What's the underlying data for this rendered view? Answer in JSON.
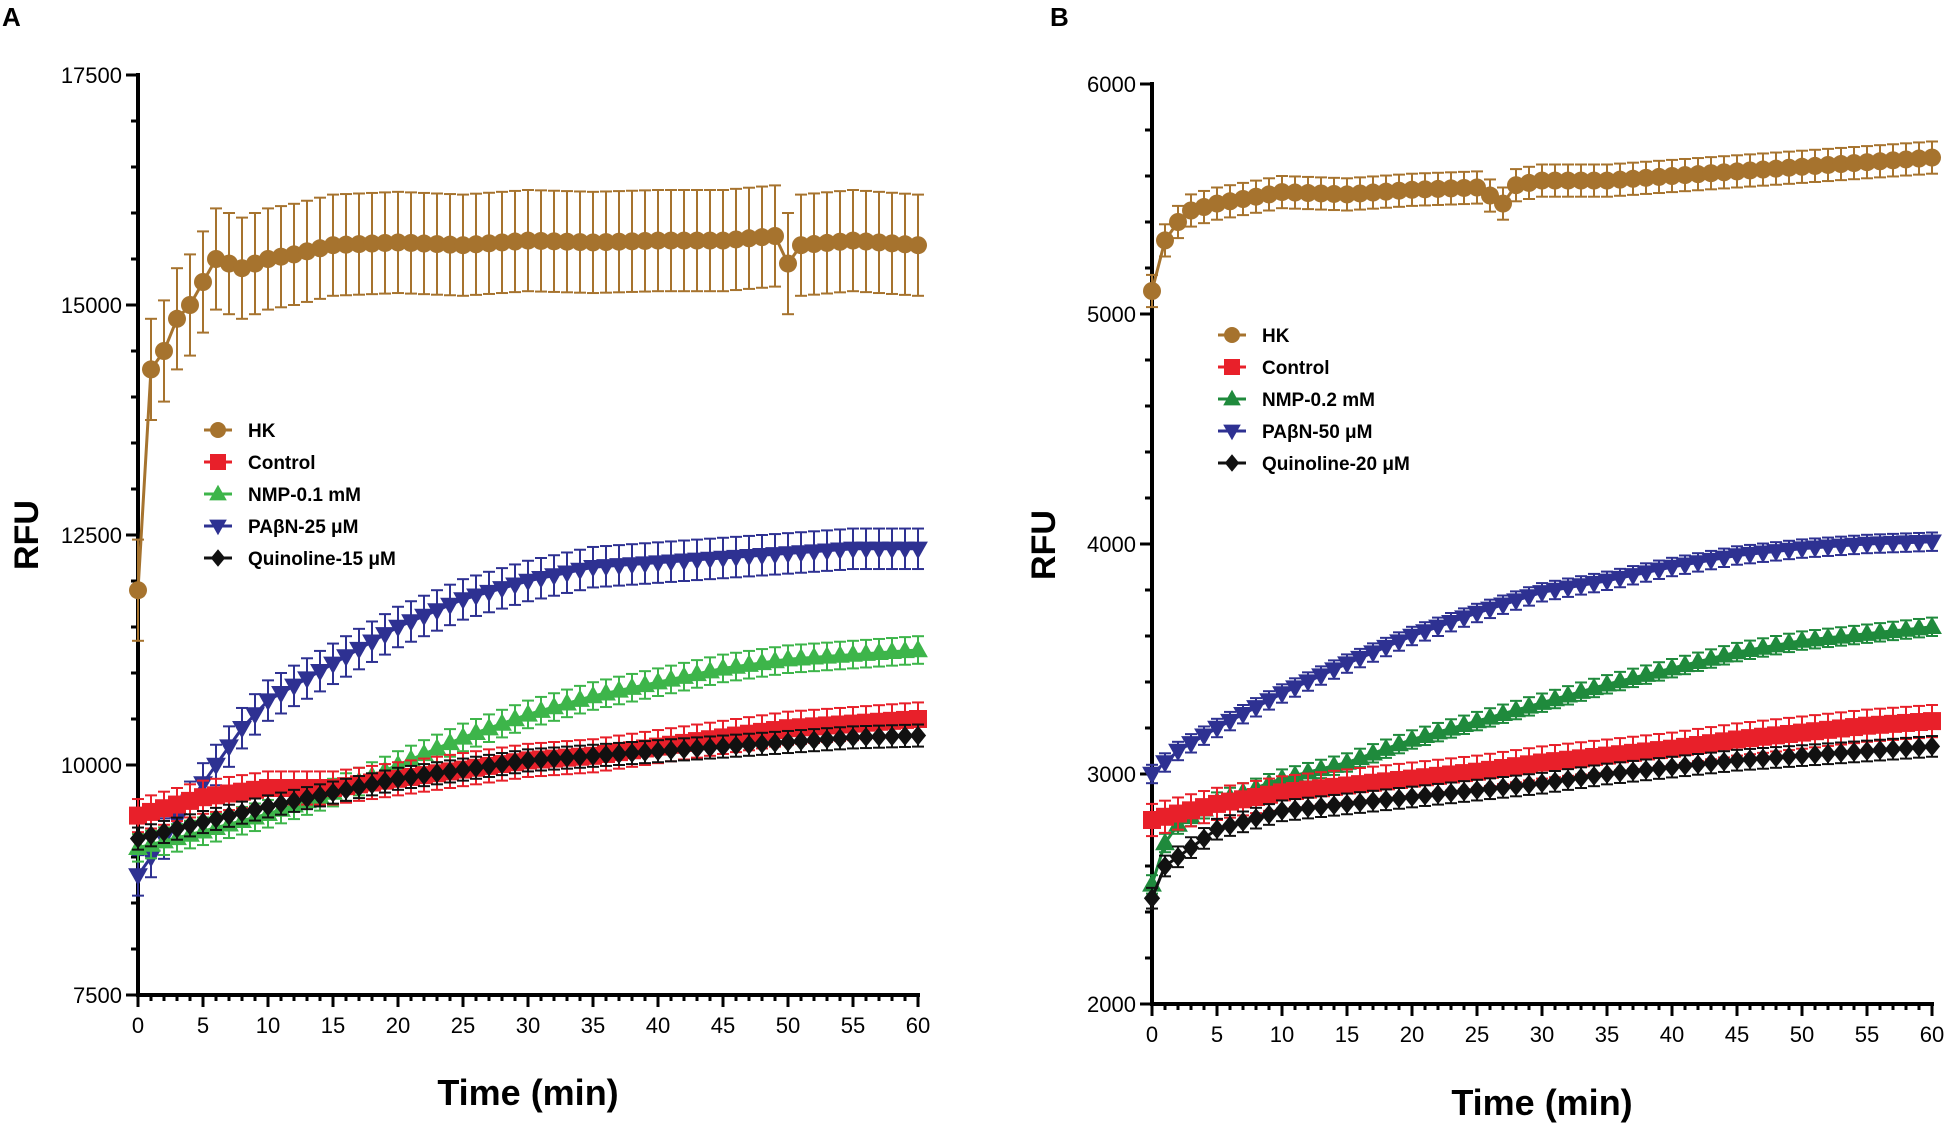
{
  "chart_data": [
    {
      "panel": "A",
      "type": "line",
      "xlabel": "Time (min)",
      "ylabel": "RFU",
      "xlim": [
        0,
        60
      ],
      "ylim": [
        7500,
        17500
      ],
      "xticks": [
        0,
        5,
        10,
        15,
        20,
        25,
        30,
        35,
        40,
        45,
        50,
        55,
        60
      ],
      "yticks": [
        7500,
        10000,
        12500,
        15000,
        17500
      ],
      "error_bars": true,
      "series": [
        {
          "name": "HK",
          "color": "#a6732e",
          "marker": "circle",
          "points": [
            [
              0,
              11900
            ],
            [
              1,
              14300
            ],
            [
              2,
              14500
            ],
            [
              3,
              14850
            ],
            [
              4,
              15000
            ],
            [
              5,
              15250
            ],
            [
              6,
              15500
            ],
            [
              7,
              15450
            ],
            [
              8,
              15400
            ],
            [
              10,
              15500
            ],
            [
              12,
              15550
            ],
            [
              15,
              15650
            ],
            [
              20,
              15680
            ],
            [
              25,
              15650
            ],
            [
              30,
              15700
            ],
            [
              35,
              15680
            ],
            [
              40,
              15700
            ],
            [
              45,
              15700
            ],
            [
              49,
              15750
            ],
            [
              50,
              15450
            ],
            [
              51,
              15650
            ],
            [
              55,
              15700
            ],
            [
              60,
              15650
            ]
          ],
          "err": 550
        },
        {
          "name": "Control",
          "color": "#e8202a",
          "marker": "square",
          "points": [
            [
              0,
              9450
            ],
            [
              5,
              9650
            ],
            [
              10,
              9750
            ],
            [
              15,
              9750
            ],
            [
              20,
              9850
            ],
            [
              25,
              9950
            ],
            [
              30,
              10050
            ],
            [
              35,
              10100
            ],
            [
              40,
              10200
            ],
            [
              45,
              10300
            ],
            [
              50,
              10400
            ],
            [
              55,
              10450
            ],
            [
              60,
              10500
            ]
          ],
          "err": 180
        },
        {
          "name": "NMP-0.1 mM",
          "color": "#3db54a",
          "marker": "triangle-up",
          "points": [
            [
              0,
              9100
            ],
            [
              5,
              9280
            ],
            [
              10,
              9470
            ],
            [
              15,
              9700
            ],
            [
              20,
              10000
            ],
            [
              25,
              10300
            ],
            [
              30,
              10550
            ],
            [
              35,
              10750
            ],
            [
              40,
              10900
            ],
            [
              45,
              11050
            ],
            [
              50,
              11150
            ],
            [
              55,
              11200
            ],
            [
              60,
              11250
            ]
          ],
          "err": 150
        },
        {
          "name": "PAβN-25 μM",
          "color": "#2e3192",
          "marker": "triangle-down",
          "points": [
            [
              0,
              8800
            ],
            [
              2,
              9200
            ],
            [
              5,
              9800
            ],
            [
              8,
              10400
            ],
            [
              10,
              10700
            ],
            [
              15,
              11100
            ],
            [
              20,
              11500
            ],
            [
              25,
              11800
            ],
            [
              30,
              12000
            ],
            [
              35,
              12150
            ],
            [
              40,
              12200
            ],
            [
              45,
              12250
            ],
            [
              50,
              12300
            ],
            [
              55,
              12350
            ],
            [
              60,
              12350
            ]
          ],
          "err": 220
        },
        {
          "name": "Quinoline-15 μM",
          "color": "#111111",
          "marker": "diamond",
          "points": [
            [
              0,
              9200
            ],
            [
              5,
              9380
            ],
            [
              10,
              9550
            ],
            [
              15,
              9700
            ],
            [
              20,
              9850
            ],
            [
              25,
              9950
            ],
            [
              30,
              10050
            ],
            [
              35,
              10100
            ],
            [
              40,
              10150
            ],
            [
              45,
              10200
            ],
            [
              50,
              10250
            ],
            [
              55,
              10300
            ],
            [
              60,
              10320
            ]
          ],
          "err": 120
        }
      ]
    },
    {
      "panel": "B",
      "type": "line",
      "xlabel": "Time (min)",
      "ylabel": "RFU",
      "xlim": [
        0,
        60
      ],
      "ylim": [
        2000,
        6000
      ],
      "xticks": [
        0,
        5,
        10,
        15,
        20,
        25,
        30,
        35,
        40,
        45,
        50,
        55,
        60
      ],
      "yticks": [
        2000,
        3000,
        4000,
        5000,
        6000
      ],
      "error_bars": true,
      "series": [
        {
          "name": "HK",
          "color": "#a6732e",
          "marker": "circle",
          "points": [
            [
              0,
              5100
            ],
            [
              1,
              5320
            ],
            [
              2,
              5400
            ],
            [
              3,
              5450
            ],
            [
              5,
              5480
            ],
            [
              8,
              5510
            ],
            [
              10,
              5530
            ],
            [
              15,
              5520
            ],
            [
              20,
              5540
            ],
            [
              25,
              5550
            ],
            [
              27,
              5480
            ],
            [
              28,
              5560
            ],
            [
              30,
              5580
            ],
            [
              35,
              5580
            ],
            [
              40,
              5600
            ],
            [
              45,
              5620
            ],
            [
              50,
              5640
            ],
            [
              55,
              5660
            ],
            [
              60,
              5680
            ]
          ],
          "err": 70
        },
        {
          "name": "Control",
          "color": "#e8202a",
          "marker": "square",
          "points": [
            [
              0,
              2800
            ],
            [
              5,
              2870
            ],
            [
              10,
              2920
            ],
            [
              15,
              2950
            ],
            [
              20,
              2980
            ],
            [
              25,
              3010
            ],
            [
              30,
              3050
            ],
            [
              35,
              3080
            ],
            [
              40,
              3110
            ],
            [
              45,
              3150
            ],
            [
              50,
              3180
            ],
            [
              55,
              3210
            ],
            [
              60,
              3230
            ]
          ],
          "err": 70
        },
        {
          "name": "NMP-0.2 mM",
          "color": "#1f8a3c",
          "marker": "triangle-up",
          "points": [
            [
              0,
              2520
            ],
            [
              1,
              2700
            ],
            [
              2,
              2780
            ],
            [
              5,
              2880
            ],
            [
              10,
              2980
            ],
            [
              15,
              3050
            ],
            [
              20,
              3150
            ],
            [
              25,
              3230
            ],
            [
              30,
              3310
            ],
            [
              35,
              3390
            ],
            [
              40,
              3460
            ],
            [
              45,
              3530
            ],
            [
              50,
              3580
            ],
            [
              55,
              3610
            ],
            [
              60,
              3640
            ]
          ],
          "err": 40
        },
        {
          "name": "PAβN-50 μM",
          "color": "#2e3192",
          "marker": "triangle-down",
          "points": [
            [
              0,
              3000
            ],
            [
              2,
              3100
            ],
            [
              5,
              3200
            ],
            [
              10,
              3350
            ],
            [
              15,
              3480
            ],
            [
              20,
              3600
            ],
            [
              25,
              3700
            ],
            [
              30,
              3790
            ],
            [
              35,
              3840
            ],
            [
              40,
              3900
            ],
            [
              45,
              3950
            ],
            [
              50,
              3980
            ],
            [
              55,
              4000
            ],
            [
              60,
              4010
            ]
          ],
          "err": 40
        },
        {
          "name": "Quinoline-20 μM",
          "color": "#111111",
          "marker": "diamond",
          "points": [
            [
              0,
              2460
            ],
            [
              1,
              2600
            ],
            [
              3,
              2680
            ],
            [
              5,
              2760
            ],
            [
              10,
              2840
            ],
            [
              15,
              2870
            ],
            [
              20,
              2900
            ],
            [
              25,
              2930
            ],
            [
              30,
              2960
            ],
            [
              35,
              3000
            ],
            [
              40,
              3030
            ],
            [
              45,
              3060
            ],
            [
              50,
              3080
            ],
            [
              55,
              3100
            ],
            [
              60,
              3120
            ]
          ],
          "err": 45
        }
      ]
    }
  ]
}
